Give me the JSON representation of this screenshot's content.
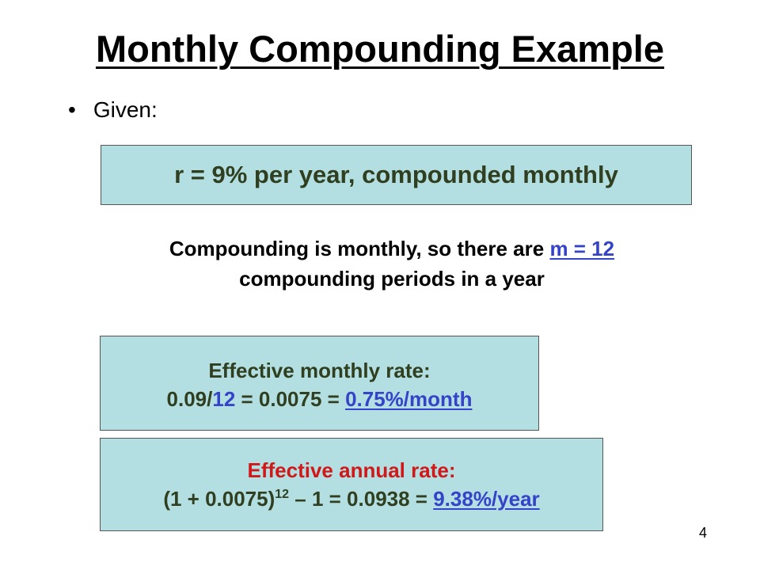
{
  "slide": {
    "title": "Monthly Compounding Example",
    "page_number": "4"
  },
  "given": {
    "bullet": "•",
    "label": "Given:",
    "box_text": "r = 9% per year, compounded monthly"
  },
  "note": {
    "line1_prefix": "Compounding is monthly, so there are ",
    "line1_highlight": "m = 12",
    "line2": "compounding periods in a year"
  },
  "monthly": {
    "heading": "Effective monthly rate:",
    "calc_prefix": "0.09/",
    "calc_divisor": "12",
    "calc_middle": " = 0.0075 = ",
    "result": "0.75%/month"
  },
  "annual": {
    "heading": "Effective annual rate:",
    "calc_base": "(1 + 0.0075)",
    "calc_exponent": "12",
    "calc_middle": " – 1 = 0.0938 = ",
    "result": "9.38%/year"
  },
  "colors": {
    "box_fill": "#b4dfe2",
    "highlight_blue": "#3543c8",
    "heading_red": "#d01818",
    "box_text_dark_olive": "#2f3f1f"
  }
}
